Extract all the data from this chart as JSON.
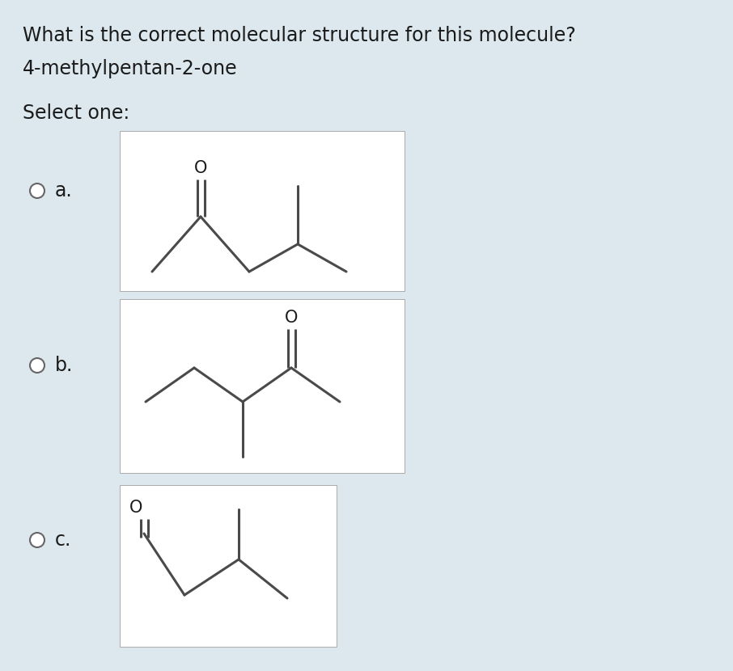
{
  "bg_color": "#dce8ed",
  "title_text": "What is the correct molecular structure for this molecule?",
  "subtitle_text": "4-methylpentan-2-one",
  "select_text": "Select one:",
  "options": [
    "a.",
    "b.",
    "c."
  ],
  "line_color": "#4a4a4a",
  "text_color": "#1a1a1a",
  "title_fontsize": 17,
  "label_fontsize": 17,
  "oxygen_fontsize": 15,
  "lw": 2.2,
  "radio_r": 9
}
